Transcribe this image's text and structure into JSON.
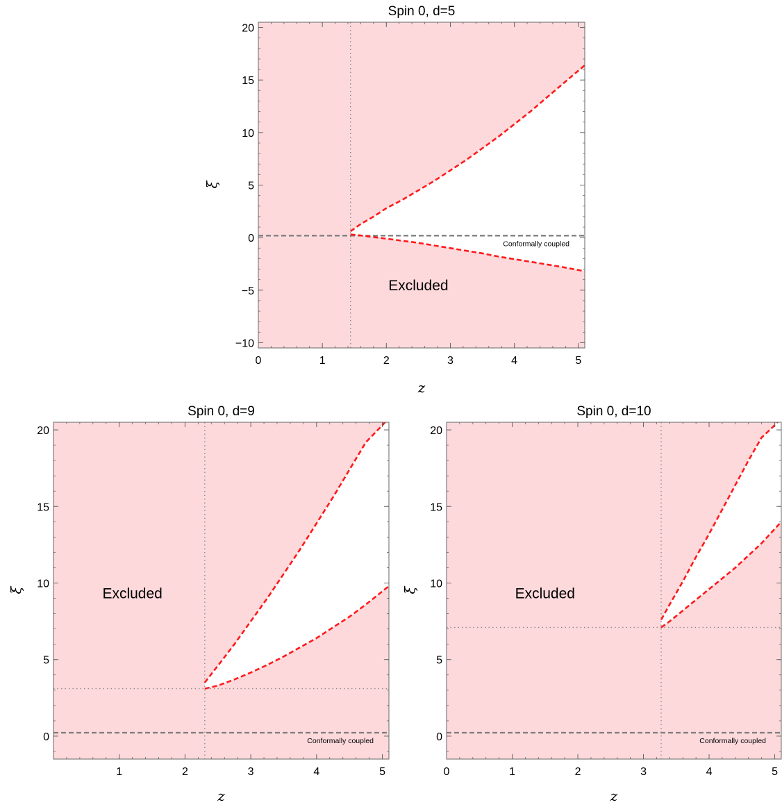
{
  "colors": {
    "excluded_fill": "#fdd9dc",
    "boundary_line": "#ff1a1a",
    "conformal_line": "#808080",
    "marker_line": "#8c8c8c",
    "frame": "#666666"
  },
  "chart_data": [
    {
      "type": "area",
      "title": "Spin 0, d=5",
      "xlabel": "z",
      "ylabel": "ξ",
      "xlim": [
        0,
        5.1
      ],
      "ylim": [
        -10.5,
        20.5
      ],
      "xticks": [
        0,
        1,
        2,
        3,
        4,
        5
      ],
      "xtick_labels": [
        "0",
        "1",
        "2",
        "3",
        "4",
        "5"
      ],
      "yticks": [
        -10,
        -5,
        0,
        5,
        10,
        15,
        20
      ],
      "ytick_labels": [
        "−10",
        "−5",
        "0",
        "5",
        "10",
        "15",
        "20"
      ],
      "excluded_label": "Excluded",
      "excluded_label_pos": {
        "x": 2.5,
        "y": -5
      },
      "conformal_label": "Conformally coupled",
      "conformal_xi": 0.1875,
      "vline_z": 1.44,
      "hline_xi": null,
      "grid": false,
      "series": [
        {
          "x": [
            1.44,
            1.6,
            1.8,
            2.0,
            2.25,
            2.5,
            2.75,
            3.0,
            3.25,
            3.5,
            3.75,
            4.0,
            4.25,
            4.5,
            4.75,
            5.1
          ],
          "y": [
            0.6,
            1.3,
            2.0,
            2.8,
            3.6,
            4.5,
            5.4,
            6.4,
            7.4,
            8.5,
            9.6,
            10.8,
            12.0,
            13.3,
            14.6,
            16.4
          ]
        },
        {
          "x": [
            1.44,
            1.6,
            1.8,
            2.0,
            2.25,
            2.5,
            2.75,
            3.0,
            3.25,
            3.5,
            3.75,
            4.0,
            4.25,
            4.5,
            4.75,
            5.1
          ],
          "y": [
            0.3,
            0.2,
            0.05,
            -0.1,
            -0.3,
            -0.5,
            -0.75,
            -1.0,
            -1.25,
            -1.5,
            -1.8,
            -2.05,
            -2.3,
            -2.55,
            -2.8,
            -3.2
          ]
        }
      ]
    },
    {
      "type": "area",
      "title": "Spin 0, d=9",
      "xlabel": "z",
      "ylabel": "ξ",
      "xlim": [
        0,
        5.1
      ],
      "ylim": [
        -1.5,
        20.5
      ],
      "xticks": [
        1,
        2,
        3,
        4,
        5
      ],
      "xtick_labels": [
        "1",
        "2",
        "3",
        "4",
        "5"
      ],
      "yticks": [
        0,
        5,
        10,
        15,
        20
      ],
      "ytick_labels": [
        "0",
        "5",
        "10",
        "15",
        "20"
      ],
      "excluded_label": "Excluded",
      "excluded_label_pos": {
        "x": 1.2,
        "y": 9
      },
      "conformal_label": "Conformally coupled",
      "conformal_xi": 0.21875,
      "vline_z": 2.3,
      "hline_xi": 3.1,
      "grid": false,
      "series": [
        {
          "x": [
            2.3,
            2.5,
            2.75,
            3.0,
            3.25,
            3.5,
            3.75,
            4.0,
            4.25,
            4.5,
            4.75,
            5.0,
            5.1
          ],
          "y": [
            3.5,
            4.6,
            6.0,
            7.5,
            9.0,
            10.6,
            12.2,
            13.9,
            15.6,
            17.4,
            19.2,
            20.3,
            20.8
          ]
        },
        {
          "x": [
            2.3,
            2.5,
            2.75,
            3.0,
            3.25,
            3.5,
            3.75,
            4.0,
            4.25,
            4.5,
            4.75,
            5.1
          ],
          "y": [
            3.1,
            3.3,
            3.7,
            4.15,
            4.65,
            5.2,
            5.8,
            6.4,
            7.1,
            7.8,
            8.6,
            9.8
          ]
        }
      ]
    },
    {
      "type": "area",
      "title": "Spin 0, d=10",
      "xlabel": "z",
      "ylabel": "ξ",
      "xlim": [
        0,
        5.1
      ],
      "ylim": [
        -1.5,
        20.5
      ],
      "xticks": [
        0,
        1,
        2,
        3,
        4,
        5
      ],
      "xtick_labels": [
        "0",
        "1",
        "2",
        "3",
        "4",
        "5"
      ],
      "yticks": [
        0,
        5,
        10,
        15,
        20
      ],
      "ytick_labels": [
        "0",
        "5",
        "10",
        "15",
        "20"
      ],
      "excluded_label": "Excluded",
      "excluded_label_pos": {
        "x": 1.5,
        "y": 9
      },
      "conformal_label": "Conformally coupled",
      "conformal_xi": 0.222,
      "vline_z": 3.27,
      "hline_xi": 7.1,
      "grid": false,
      "series": [
        {
          "x": [
            3.27,
            3.4,
            3.6,
            3.8,
            4.0,
            4.2,
            4.4,
            4.6,
            4.8,
            5.0,
            5.1
          ],
          "y": [
            7.6,
            8.6,
            10.1,
            11.7,
            13.2,
            14.8,
            16.4,
            18.0,
            19.5,
            20.3,
            20.8
          ]
        },
        {
          "x": [
            3.27,
            3.4,
            3.6,
            3.8,
            4.0,
            4.2,
            4.4,
            4.6,
            4.8,
            5.1
          ],
          "y": [
            7.1,
            7.5,
            8.2,
            8.9,
            9.6,
            10.3,
            11.0,
            11.8,
            12.6,
            14.0
          ]
        }
      ]
    }
  ]
}
